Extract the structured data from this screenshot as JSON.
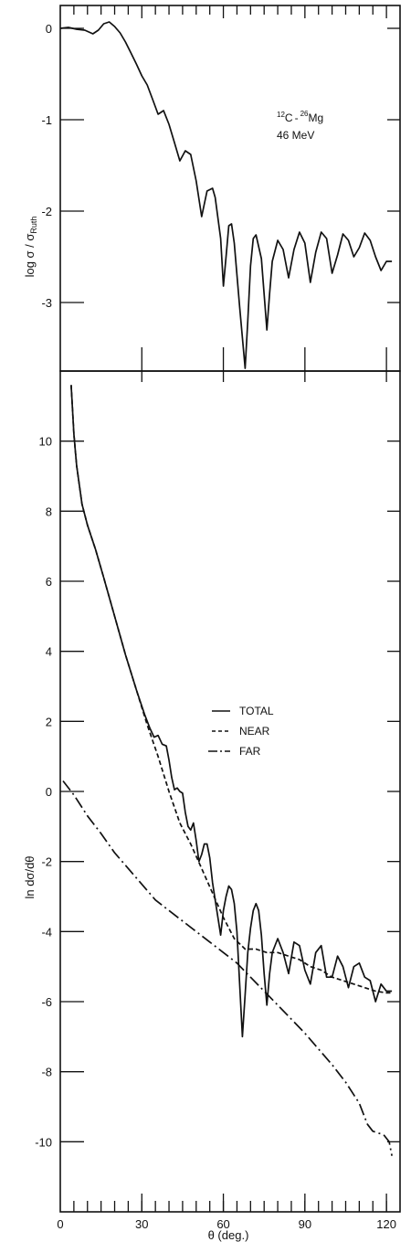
{
  "chart_data": [
    {
      "type": "line",
      "title": "",
      "xlabel": "",
      "ylabel": "log σ / σ_Ruth",
      "ylabel_main": "log σ / σ",
      "ylabel_sub": "Ruth",
      "xlim": [
        0,
        125
      ],
      "ylim": [
        -3.75,
        0.25
      ],
      "y_ticks": [
        0,
        -1,
        -2,
        -3
      ],
      "y_tick_labels": [
        "0",
        "-1",
        "-2",
        "-3"
      ],
      "x_major_ticks": [
        30,
        60,
        90,
        120
      ],
      "annotation": {
        "projectile_mass": "12",
        "projectile": "C",
        "dash": "-",
        "target_mass": "26",
        "target": "Mg",
        "energy": "46 MeV"
      },
      "series": [
        {
          "x": [
            0,
            3,
            6,
            9,
            12,
            14,
            16,
            18,
            20,
            22,
            24,
            26,
            28,
            30,
            32,
            34,
            36,
            38,
            40,
            42,
            44,
            46,
            48,
            50,
            52,
            54,
            56,
            57,
            59,
            60,
            61,
            62,
            63,
            64,
            66,
            68,
            69,
            70,
            71,
            72,
            74,
            76,
            77,
            78,
            80,
            82,
            84,
            86,
            88,
            90,
            92,
            94,
            96,
            98,
            100,
            102,
            104,
            106,
            108,
            110,
            112,
            114,
            116,
            118,
            120,
            122
          ],
          "y": [
            0,
            0.01,
            -0.01,
            -0.02,
            -0.06,
            -0.02,
            0.05,
            0.07,
            0.02,
            -0.05,
            -0.15,
            -0.27,
            -0.39,
            -0.52,
            -0.62,
            -0.78,
            -0.94,
            -0.9,
            -1.05,
            -1.25,
            -1.45,
            -1.34,
            -1.38,
            -1.67,
            -2.06,
            -1.78,
            -1.75,
            -1.85,
            -2.3,
            -2.82,
            -2.5,
            -2.16,
            -2.14,
            -2.35,
            -3.05,
            -3.72,
            -3.2,
            -2.6,
            -2.3,
            -2.26,
            -2.52,
            -3.3,
            -2.9,
            -2.55,
            -2.32,
            -2.42,
            -2.73,
            -2.42,
            -2.23,
            -2.35,
            -2.78,
            -2.45,
            -2.23,
            -2.3,
            -2.68,
            -2.48,
            -2.25,
            -2.32,
            -2.5,
            -2.4,
            -2.24,
            -2.32,
            -2.5,
            -2.65,
            -2.55,
            -2.55
          ]
        }
      ]
    },
    {
      "type": "line",
      "title": "",
      "xlabel": "θ (deg.)",
      "ylabel": "ln dσ/dθ",
      "xlim": [
        0,
        125
      ],
      "ylim": [
        -12,
        12
      ],
      "y_ticks": [
        10,
        8,
        6,
        4,
        2,
        0,
        -2,
        -4,
        -6,
        -8,
        -10
      ],
      "y_tick_labels": [
        "10",
        "8",
        "6",
        "4",
        "2",
        "0",
        "-2",
        "-4",
        "-6",
        "-8",
        "-10"
      ],
      "x_ticks": [
        0,
        30,
        60,
        90,
        120
      ],
      "x_tick_labels": [
        "0",
        "30",
        "60",
        "90",
        "120"
      ],
      "legend_position": "top-center",
      "series": [
        {
          "name": "TOTAL",
          "x": [
            4,
            5,
            6,
            8,
            10,
            13,
            16,
            20,
            24,
            28,
            31,
            33,
            34.5,
            36,
            37.5,
            39,
            40,
            41,
            42,
            43,
            44,
            45,
            46,
            47,
            48,
            49,
            50,
            51,
            52,
            53,
            54,
            55,
            56,
            57,
            58,
            59,
            60,
            61,
            62,
            63,
            64,
            65,
            66,
            67,
            68,
            69,
            70,
            71,
            72,
            73,
            74,
            75,
            76,
            77,
            78,
            80,
            82,
            84,
            86,
            88,
            90,
            92,
            94,
            96,
            98,
            100,
            102,
            104,
            106,
            108,
            110,
            112,
            114,
            116,
            118,
            120,
            122
          ],
          "y": [
            11.6,
            10.2,
            9.3,
            8.2,
            7.6,
            6.9,
            6.1,
            5.0,
            3.9,
            2.9,
            2.2,
            1.8,
            1.55,
            1.6,
            1.35,
            1.3,
            0.9,
            0.4,
            0.05,
            0.1,
            0.0,
            -0.05,
            -0.6,
            -1.0,
            -1.1,
            -0.9,
            -1.4,
            -2.0,
            -1.8,
            -1.5,
            -1.5,
            -1.9,
            -2.6,
            -3.1,
            -3.6,
            -4.1,
            -3.4,
            -3.0,
            -2.7,
            -2.8,
            -3.2,
            -4.0,
            -5.5,
            -7.0,
            -5.8,
            -4.6,
            -3.9,
            -3.4,
            -3.2,
            -3.4,
            -4.1,
            -5.2,
            -6.1,
            -5.2,
            -4.6,
            -4.2,
            -4.6,
            -5.2,
            -4.3,
            -4.4,
            -5.1,
            -5.5,
            -4.6,
            -4.4,
            -5.3,
            -5.3,
            -4.7,
            -5.0,
            -5.6,
            -5.0,
            -4.9,
            -5.3,
            -5.4,
            -6.0,
            -5.5,
            -5.7,
            -5.7
          ]
        },
        {
          "name": "NEAR",
          "x": [
            4,
            5,
            6,
            8,
            10,
            13,
            16,
            20,
            24,
            28,
            32,
            36,
            40,
            44,
            48,
            52,
            56,
            60,
            64,
            68,
            72,
            76,
            80,
            84,
            88,
            92,
            96,
            100,
            104,
            108,
            112,
            116,
            120,
            122
          ],
          "y": [
            11.6,
            10.2,
            9.3,
            8.2,
            7.6,
            6.9,
            6.1,
            5.0,
            3.9,
            2.9,
            1.9,
            1.0,
            0.0,
            -0.9,
            -1.5,
            -2.2,
            -2.9,
            -3.6,
            -4.2,
            -4.5,
            -4.5,
            -4.6,
            -4.6,
            -4.7,
            -4.8,
            -5.0,
            -5.1,
            -5.3,
            -5.4,
            -5.5,
            -5.6,
            -5.7,
            -5.75,
            -5.75
          ]
        },
        {
          "name": "FAR",
          "x": [
            1,
            5,
            10,
            15,
            20,
            25,
            30,
            35,
            40,
            45,
            50,
            55,
            60,
            65,
            70,
            75,
            80,
            85,
            90,
            95,
            100,
            105,
            110,
            113,
            115,
            117,
            119,
            121,
            122
          ],
          "y": [
            0.3,
            -0.1,
            -0.7,
            -1.2,
            -1.75,
            -2.2,
            -2.65,
            -3.1,
            -3.4,
            -3.7,
            -4.0,
            -4.3,
            -4.6,
            -4.9,
            -5.3,
            -5.7,
            -6.1,
            -6.5,
            -6.9,
            -7.35,
            -7.8,
            -8.3,
            -8.9,
            -9.5,
            -9.7,
            -9.75,
            -9.8,
            -10.0,
            -10.4
          ]
        }
      ]
    }
  ]
}
